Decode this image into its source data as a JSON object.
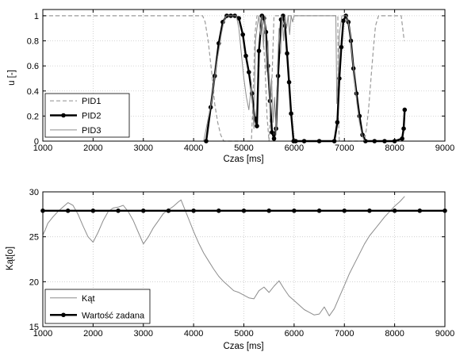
{
  "chart_data": [
    {
      "type": "line",
      "xlabel": "Czas [ms]",
      "ylabel": "u [-]",
      "xlim": [
        1000,
        9000
      ],
      "ylim": [
        0,
        1.05
      ],
      "xticks": [
        1000,
        2000,
        3000,
        4000,
        5000,
        6000,
        7000,
        8000,
        9000
      ],
      "xtick_labels": [
        "1000",
        "2000",
        "3000",
        "4000",
        "5000",
        "6000",
        "7000",
        "8000",
        "9000"
      ],
      "yticks": [
        0,
        0.2,
        0.4,
        0.6,
        0.8,
        1
      ],
      "ytick_labels": [
        "0",
        "0.2",
        "0.4",
        "0.6",
        "0.8",
        "1"
      ],
      "grid": true,
      "legend_position": "bottom-left",
      "series": [
        {
          "name": "PID1",
          "style": "dashed",
          "color": "#9a9a9a",
          "x": [
            1000,
            4180,
            4230,
            4290,
            4360,
            4420,
            4480,
            4540,
            4600,
            4660,
            5150,
            5180,
            5220,
            5260,
            5300,
            5360,
            5420,
            5460,
            5500,
            5560,
            5600,
            5640,
            5700,
            5760,
            6870,
            6880,
            6900,
            7400,
            7440,
            7480,
            7530,
            7580,
            7620,
            7680,
            8130,
            8160,
            8190
          ],
          "y": [
            1,
            1,
            0.95,
            0.8,
            0.55,
            0.3,
            0.15,
            0.05,
            0,
            0,
            0,
            0.3,
            0.85,
            1,
            1,
            1,
            0.6,
            0.2,
            0,
            0.5,
            1,
            1,
            1,
            1,
            1,
            0.2,
            0,
            0,
            0.1,
            0.25,
            0.5,
            0.75,
            0.92,
            1,
            1,
            0.9,
            0.8
          ]
        },
        {
          "name": "PID2",
          "style": "solid-marker",
          "color": "#000000",
          "marker": "circle",
          "x": [
            4250,
            4340,
            4420,
            4500,
            4580,
            4660,
            4740,
            4820,
            4900,
            4980,
            5040,
            5100,
            5160,
            5220,
            5260,
            5300,
            5360,
            5400,
            5440,
            5480,
            5520,
            5560,
            5600,
            5640,
            5680,
            5740,
            5780,
            5820,
            5860,
            5900,
            5940,
            5990,
            6030,
            6200,
            6500,
            6800,
            6860,
            6900,
            6940,
            6980,
            7030,
            7080,
            7130,
            7180,
            7240,
            7300,
            7360,
            7420,
            7600,
            7800,
            8000,
            8150,
            8180,
            8200
          ],
          "y": [
            0,
            0.27,
            0.52,
            0.78,
            0.95,
            1,
            1,
            1,
            0.98,
            0.85,
            0.68,
            0.55,
            0.38,
            0.18,
            0.12,
            0.72,
            1,
            0.98,
            0.87,
            0.6,
            0.32,
            0.07,
            0.02,
            0.1,
            0.52,
            0.97,
            1,
            0.92,
            0.7,
            0.47,
            0.22,
            0,
            0,
            0,
            0,
            0,
            0.15,
            0.5,
            0.75,
            0.96,
            1,
            0.95,
            0.8,
            0.58,
            0.38,
            0.2,
            0.05,
            0,
            0,
            0,
            0,
            0.02,
            0.1,
            0.25
          ]
        },
        {
          "name": "PID3",
          "style": "solid",
          "color": "#8c8c8c",
          "x": [
            4200,
            4250,
            4300,
            4350,
            4400,
            4450,
            4500,
            4550,
            4600,
            4650,
            4700,
            4750,
            4800,
            4850,
            4900,
            4950,
            5000,
            5050,
            5100,
            5150,
            5200,
            5230,
            5260,
            5300,
            5330,
            5360,
            5390,
            5420,
            5450,
            5480,
            5520,
            5550,
            5580,
            5610,
            5640,
            5670,
            5700,
            5730,
            5760,
            5790,
            5820,
            5850,
            5880,
            5910,
            5940,
            5970,
            6000,
            6100,
            6300,
            6500,
            6700,
            6830,
            6850,
            6880,
            6900,
            6950,
            7000,
            7050,
            7100,
            7150,
            7200,
            7250,
            7300,
            7350,
            7400,
            7600,
            7800,
            8000,
            8200
          ],
          "y": [
            0,
            0.1,
            0.2,
            0.3,
            0.45,
            0.6,
            0.72,
            0.85,
            0.95,
            1,
            1,
            1,
            1,
            1,
            0.9,
            0.7,
            0.5,
            0.35,
            0.25,
            0.45,
            0.1,
            0.8,
            0.9,
            1,
            0.85,
            1,
            0.75,
            1,
            0.55,
            0.8,
            0.2,
            0.5,
            0.15,
            0.35,
            0.05,
            0.6,
            0.9,
            0.7,
            1,
            0.8,
            1,
            0.9,
            1,
            0.85,
            1,
            0.95,
            1,
            1,
            1,
            1,
            1,
            1,
            0.3,
            0.55,
            0.85,
            1,
            1,
            1,
            0.9,
            0.7,
            0.5,
            0.3,
            0.15,
            0.05,
            0,
            0,
            0,
            0,
            0
          ]
        }
      ]
    },
    {
      "type": "line",
      "xlabel": "Czas [ms]",
      "ylabel": "Kąt[o]",
      "xlim": [
        1000,
        9000
      ],
      "ylim": [
        15,
        30
      ],
      "xticks": [
        1000,
        2000,
        3000,
        4000,
        5000,
        6000,
        7000,
        8000,
        9000
      ],
      "xtick_labels": [
        "1000",
        "2000",
        "3000",
        "4000",
        "5000",
        "6000",
        "7000",
        "8000",
        "9000"
      ],
      "yticks": [
        15,
        20,
        25,
        30
      ],
      "ytick_labels": [
        "15",
        "20",
        "25",
        "30"
      ],
      "grid": true,
      "legend_position": "bottom-left",
      "series": [
        {
          "name": "Kąt",
          "style": "solid",
          "color": "#8c8c8c",
          "x": [
            1000,
            1050,
            1100,
            1200,
            1300,
            1400,
            1500,
            1600,
            1700,
            1800,
            1900,
            2000,
            2100,
            2200,
            2300,
            2400,
            2500,
            2600,
            2700,
            2800,
            2900,
            3000,
            3100,
            3200,
            3300,
            3400,
            3500,
            3600,
            3700,
            3750,
            3800,
            3900,
            4000,
            4100,
            4200,
            4300,
            4400,
            4500,
            4600,
            4700,
            4800,
            4900,
            5000,
            5100,
            5200,
            5300,
            5400,
            5500,
            5600,
            5700,
            5800,
            5900,
            6000,
            6100,
            6200,
            6300,
            6400,
            6500,
            6600,
            6700,
            6800,
            6900,
            7000,
            7100,
            7200,
            7300,
            7400,
            7500,
            7600,
            7700,
            7800,
            7900,
            8000,
            8100,
            8200
          ],
          "y": [
            25.2,
            25.8,
            26.5,
            27.2,
            27.8,
            28.3,
            28.8,
            28.5,
            27.5,
            26.2,
            25.0,
            24.4,
            25.5,
            26.8,
            27.8,
            28.2,
            28.3,
            28.5,
            27.8,
            26.8,
            25.5,
            24.2,
            25.0,
            26.0,
            26.8,
            27.6,
            28.0,
            28.4,
            28.9,
            29.1,
            28.4,
            27.0,
            25.6,
            24.3,
            23.2,
            22.3,
            21.4,
            20.6,
            20.0,
            19.5,
            19.0,
            18.8,
            18.5,
            18.2,
            18.1,
            19.0,
            19.4,
            18.8,
            19.5,
            20.1,
            19.2,
            18.4,
            17.9,
            17.4,
            16.9,
            16.6,
            16.3,
            16.4,
            17.2,
            16.2,
            17.0,
            18.3,
            19.6,
            20.9,
            22.0,
            23.1,
            24.2,
            25.1,
            25.8,
            26.5,
            27.2,
            27.8,
            28.4,
            28.9,
            29.5
          ]
        },
        {
          "name": "Wartość zadana",
          "style": "solid-marker",
          "color": "#000000",
          "marker": "circle",
          "x": [
            1000,
            1500,
            2000,
            2500,
            3000,
            3500,
            4000,
            4500,
            5000,
            5500,
            6000,
            6500,
            7000,
            7500,
            8000,
            8500,
            9000
          ],
          "y": [
            27.9,
            27.9,
            27.9,
            27.9,
            27.9,
            27.9,
            27.9,
            27.9,
            27.9,
            27.9,
            27.9,
            27.9,
            27.9,
            27.9,
            27.9,
            27.9,
            27.9
          ]
        }
      ]
    }
  ]
}
